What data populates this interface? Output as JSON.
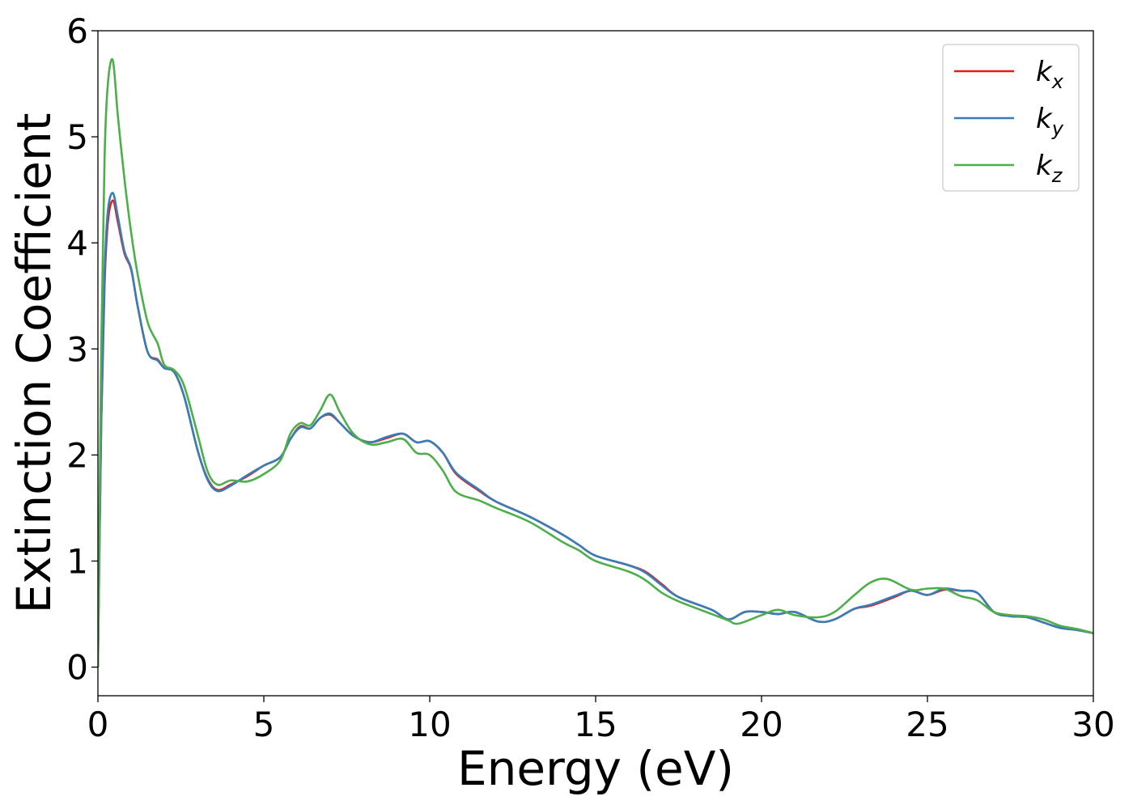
{
  "chart_data": {
    "type": "line",
    "title": "",
    "xlabel": "Energy (eV)",
    "ylabel": "Extinction Coefficient",
    "xlim": [
      0,
      30
    ],
    "ylim": [
      -0.27,
      6
    ],
    "xticks": [
      0,
      5,
      10,
      15,
      20,
      25,
      30
    ],
    "yticks": [
      0,
      1,
      2,
      3,
      4,
      5,
      6
    ],
    "grid": false,
    "legend_position": "top-right",
    "series": [
      {
        "name": "k_x",
        "label_main": "k",
        "label_sub": "x",
        "color": "#e41a1c",
        "points": [
          [
            0,
            0.0
          ],
          [
            0.1,
            2.3
          ],
          [
            0.2,
            3.6
          ],
          [
            0.3,
            4.2
          ],
          [
            0.45,
            4.4
          ],
          [
            0.6,
            4.2
          ],
          [
            0.8,
            3.9
          ],
          [
            1.0,
            3.75
          ],
          [
            1.2,
            3.4
          ],
          [
            1.5,
            2.97
          ],
          [
            1.8,
            2.9
          ],
          [
            2.0,
            2.82
          ],
          [
            2.3,
            2.78
          ],
          [
            2.6,
            2.55
          ],
          [
            3.0,
            2.05
          ],
          [
            3.3,
            1.78
          ],
          [
            3.6,
            1.67
          ],
          [
            4.0,
            1.72
          ],
          [
            4.5,
            1.8
          ],
          [
            5.0,
            1.9
          ],
          [
            5.5,
            1.98
          ],
          [
            5.8,
            2.15
          ],
          [
            6.1,
            2.27
          ],
          [
            6.4,
            2.25
          ],
          [
            6.7,
            2.35
          ],
          [
            7.0,
            2.38
          ],
          [
            7.3,
            2.3
          ],
          [
            7.7,
            2.18
          ],
          [
            8.2,
            2.12
          ],
          [
            8.7,
            2.16
          ],
          [
            9.2,
            2.2
          ],
          [
            9.6,
            2.12
          ],
          [
            10.0,
            2.13
          ],
          [
            10.4,
            2.02
          ],
          [
            10.8,
            1.82
          ],
          [
            11.5,
            1.66
          ],
          [
            12.0,
            1.56
          ],
          [
            13.0,
            1.42
          ],
          [
            14.0,
            1.25
          ],
          [
            14.5,
            1.15
          ],
          [
            15.0,
            1.05
          ],
          [
            16.0,
            0.96
          ],
          [
            16.5,
            0.9
          ],
          [
            17.0,
            0.78
          ],
          [
            17.5,
            0.66
          ],
          [
            18.5,
            0.54
          ],
          [
            19.0,
            0.45
          ],
          [
            19.5,
            0.52
          ],
          [
            20.0,
            0.52
          ],
          [
            20.5,
            0.5
          ],
          [
            21.0,
            0.52
          ],
          [
            21.7,
            0.43
          ],
          [
            22.2,
            0.45
          ],
          [
            22.8,
            0.55
          ],
          [
            23.3,
            0.58
          ],
          [
            24.0,
            0.66
          ],
          [
            24.5,
            0.72
          ],
          [
            25.0,
            0.68
          ],
          [
            25.5,
            0.73
          ],
          [
            26.0,
            0.72
          ],
          [
            26.5,
            0.7
          ],
          [
            27.0,
            0.52
          ],
          [
            27.5,
            0.48
          ],
          [
            28.0,
            0.47
          ],
          [
            28.5,
            0.42
          ],
          [
            29.0,
            0.37
          ],
          [
            29.5,
            0.35
          ],
          [
            30.0,
            0.32
          ]
        ]
      },
      {
        "name": "k_y",
        "label_main": "k",
        "label_sub": "y",
        "color": "#377eb8",
        "points": [
          [
            0,
            0.0
          ],
          [
            0.1,
            2.35
          ],
          [
            0.2,
            3.7
          ],
          [
            0.3,
            4.3
          ],
          [
            0.45,
            4.47
          ],
          [
            0.6,
            4.25
          ],
          [
            0.8,
            3.92
          ],
          [
            1.0,
            3.76
          ],
          [
            1.2,
            3.4
          ],
          [
            1.5,
            2.97
          ],
          [
            1.8,
            2.89
          ],
          [
            2.0,
            2.82
          ],
          [
            2.3,
            2.78
          ],
          [
            2.6,
            2.55
          ],
          [
            3.0,
            2.05
          ],
          [
            3.3,
            1.77
          ],
          [
            3.6,
            1.66
          ],
          [
            4.0,
            1.71
          ],
          [
            4.5,
            1.81
          ],
          [
            5.0,
            1.9
          ],
          [
            5.5,
            1.98
          ],
          [
            5.8,
            2.15
          ],
          [
            6.1,
            2.26
          ],
          [
            6.4,
            2.25
          ],
          [
            6.7,
            2.35
          ],
          [
            7.0,
            2.39
          ],
          [
            7.3,
            2.3
          ],
          [
            7.7,
            2.18
          ],
          [
            8.2,
            2.12
          ],
          [
            8.7,
            2.17
          ],
          [
            9.2,
            2.2
          ],
          [
            9.6,
            2.12
          ],
          [
            10.0,
            2.13
          ],
          [
            10.4,
            2.02
          ],
          [
            10.8,
            1.83
          ],
          [
            11.5,
            1.67
          ],
          [
            12.0,
            1.56
          ],
          [
            13.0,
            1.42
          ],
          [
            14.0,
            1.25
          ],
          [
            14.5,
            1.15
          ],
          [
            15.0,
            1.05
          ],
          [
            16.0,
            0.96
          ],
          [
            16.5,
            0.89
          ],
          [
            17.0,
            0.77
          ],
          [
            17.5,
            0.66
          ],
          [
            18.5,
            0.54
          ],
          [
            19.0,
            0.45
          ],
          [
            19.5,
            0.52
          ],
          [
            20.0,
            0.52
          ],
          [
            20.5,
            0.5
          ],
          [
            21.0,
            0.52
          ],
          [
            21.7,
            0.43
          ],
          [
            22.2,
            0.45
          ],
          [
            22.8,
            0.55
          ],
          [
            23.3,
            0.59
          ],
          [
            24.0,
            0.67
          ],
          [
            24.5,
            0.72
          ],
          [
            25.0,
            0.68
          ],
          [
            25.5,
            0.74
          ],
          [
            26.0,
            0.72
          ],
          [
            26.5,
            0.7
          ],
          [
            27.0,
            0.52
          ],
          [
            27.5,
            0.48
          ],
          [
            28.0,
            0.47
          ],
          [
            28.5,
            0.42
          ],
          [
            29.0,
            0.37
          ],
          [
            29.5,
            0.35
          ],
          [
            30.0,
            0.32
          ]
        ]
      },
      {
        "name": "k_z",
        "label_main": "k",
        "label_sub": "z",
        "color": "#4daf4a",
        "points": [
          [
            0,
            0.0
          ],
          [
            0.1,
            3.0
          ],
          [
            0.2,
            4.8
          ],
          [
            0.3,
            5.5
          ],
          [
            0.45,
            5.72
          ],
          [
            0.6,
            5.2
          ],
          [
            0.8,
            4.6
          ],
          [
            1.0,
            4.1
          ],
          [
            1.2,
            3.7
          ],
          [
            1.5,
            3.25
          ],
          [
            1.8,
            3.05
          ],
          [
            2.0,
            2.85
          ],
          [
            2.3,
            2.8
          ],
          [
            2.6,
            2.65
          ],
          [
            3.0,
            2.2
          ],
          [
            3.3,
            1.85
          ],
          [
            3.6,
            1.72
          ],
          [
            4.0,
            1.76
          ],
          [
            4.5,
            1.75
          ],
          [
            5.0,
            1.82
          ],
          [
            5.5,
            1.95
          ],
          [
            5.8,
            2.2
          ],
          [
            6.1,
            2.3
          ],
          [
            6.4,
            2.28
          ],
          [
            6.7,
            2.42
          ],
          [
            7.0,
            2.57
          ],
          [
            7.3,
            2.4
          ],
          [
            7.7,
            2.2
          ],
          [
            8.2,
            2.1
          ],
          [
            8.7,
            2.12
          ],
          [
            9.2,
            2.15
          ],
          [
            9.6,
            2.02
          ],
          [
            10.0,
            2.0
          ],
          [
            10.4,
            1.85
          ],
          [
            10.8,
            1.65
          ],
          [
            11.5,
            1.57
          ],
          [
            12.0,
            1.5
          ],
          [
            13.0,
            1.37
          ],
          [
            14.0,
            1.18
          ],
          [
            14.5,
            1.1
          ],
          [
            15.0,
            1.0
          ],
          [
            16.0,
            0.9
          ],
          [
            16.5,
            0.82
          ],
          [
            17.0,
            0.7
          ],
          [
            17.5,
            0.62
          ],
          [
            18.5,
            0.5
          ],
          [
            19.0,
            0.44
          ],
          [
            19.3,
            0.41
          ],
          [
            20.0,
            0.49
          ],
          [
            20.5,
            0.54
          ],
          [
            21.0,
            0.49
          ],
          [
            21.7,
            0.47
          ],
          [
            22.2,
            0.52
          ],
          [
            22.8,
            0.68
          ],
          [
            23.3,
            0.8
          ],
          [
            23.8,
            0.83
          ],
          [
            24.5,
            0.73
          ],
          [
            25.0,
            0.74
          ],
          [
            25.5,
            0.74
          ],
          [
            26.0,
            0.67
          ],
          [
            26.5,
            0.63
          ],
          [
            27.0,
            0.52
          ],
          [
            27.5,
            0.49
          ],
          [
            28.0,
            0.48
          ],
          [
            28.5,
            0.45
          ],
          [
            29.0,
            0.39
          ],
          [
            29.5,
            0.36
          ],
          [
            30.0,
            0.32
          ]
        ]
      }
    ]
  }
}
